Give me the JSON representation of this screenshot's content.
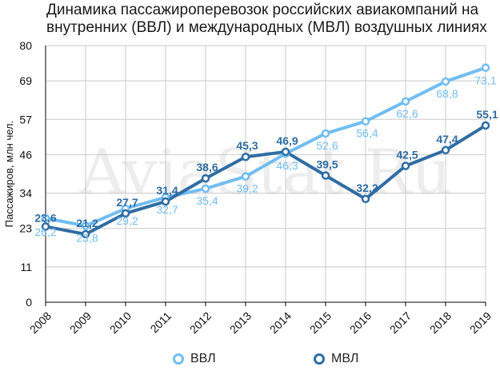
{
  "title_line1": "Динамика пассажироперевозок российских авиакомпаний на",
  "title_line2": "внутренних (ВВЛ) и международных (МВЛ) воздушных линиях",
  "watermark": "AviaStat.Ru",
  "colors": {
    "vvl": "#72bdf0",
    "mvl": "#2f6da3",
    "grid": "#c8c8c8",
    "axis": "#000000"
  },
  "legend": {
    "vvl": "ВВЛ",
    "mvl": "МВЛ"
  },
  "chart_data": {
    "type": "line",
    "title": "Динамика пассажироперевозок российских авиакомпаний на внутренних (ВВЛ) и международных (МВЛ) воздушных линиях",
    "xlabel": "",
    "ylabel": "Пассажиров, млн чел.",
    "categories": [
      "2008",
      "2009",
      "2010",
      "2011",
      "2012",
      "2013",
      "2014",
      "2015",
      "2016",
      "2017",
      "2018",
      "2019"
    ],
    "yticks": [
      "0",
      "11",
      "23",
      "34",
      "46",
      "57",
      "69",
      "80"
    ],
    "ylim": [
      0,
      80
    ],
    "grid": true,
    "legend_position": "bottom",
    "series": [
      {
        "name": "ВВЛ",
        "values": [
          26.2,
          23.8,
          29.2,
          32.7,
          35.4,
          39.2,
          46.3,
          52.6,
          56.4,
          62.6,
          68.8,
          73.1
        ],
        "labels": [
          "26,2",
          "23,8",
          "29,2",
          "32,7",
          "35,4",
          "39,2",
          "46,3",
          "52,6",
          "56,4",
          "62,6",
          "68,8",
          "73,1"
        ]
      },
      {
        "name": "МВЛ",
        "values": [
          23.6,
          21.2,
          27.7,
          31.4,
          38.6,
          45.3,
          46.9,
          39.5,
          32.2,
          42.5,
          47.4,
          55.1
        ],
        "labels": [
          "23,6",
          "21,2",
          "27,7",
          "31,4",
          "38,6",
          "45,3",
          "46,9",
          "39,5",
          "32,2",
          "42,5",
          "47,4",
          "55,1"
        ]
      }
    ]
  }
}
